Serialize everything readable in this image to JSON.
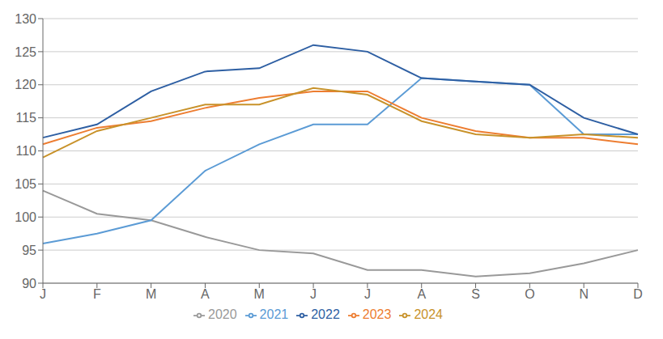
{
  "chart_data": {
    "type": "line",
    "categories": [
      "J",
      "F",
      "M",
      "A",
      "M",
      "J",
      "J",
      "A",
      "S",
      "O",
      "N",
      "D"
    ],
    "series": [
      {
        "name": "2020",
        "color": "#999999",
        "values": [
          104,
          100.5,
          99.5,
          97,
          95,
          94.5,
          92,
          92,
          91,
          91.5,
          93,
          95
        ]
      },
      {
        "name": "2021",
        "color": "#5b9bd5",
        "values": [
          96,
          97.5,
          99.5,
          107,
          111,
          114,
          114,
          121,
          120.5,
          120,
          112.5,
          112.5
        ]
      },
      {
        "name": "2022",
        "color": "#2e5fa3",
        "values": [
          112,
          114,
          119,
          122,
          122.5,
          126,
          125,
          121,
          120.5,
          120,
          115,
          112.5
        ]
      },
      {
        "name": "2023",
        "color": "#ed7d31",
        "values": [
          111,
          113.5,
          114.5,
          116.5,
          118,
          119,
          119,
          115,
          113,
          112,
          112,
          111
        ]
      },
      {
        "name": "2024",
        "color": "#c8922a",
        "values": [
          109,
          113,
          115,
          117,
          117,
          119.5,
          118.5,
          114.5,
          112.5,
          112,
          112.5,
          112
        ]
      }
    ],
    "ylim": [
      90,
      130
    ],
    "yticks": [
      90,
      95,
      100,
      105,
      110,
      115,
      120,
      125,
      130
    ],
    "grid": true,
    "legend": "bottom"
  }
}
